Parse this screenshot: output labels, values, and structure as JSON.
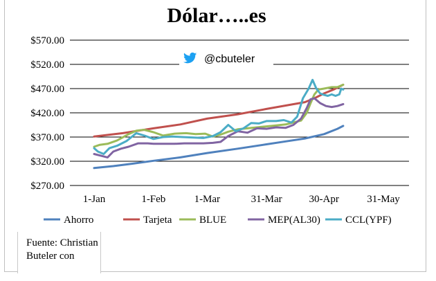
{
  "source_text": "Fuente: Christian Buteler con",
  "watermark": {
    "handle": "@cbuteler",
    "icon": "twitter-bird-icon",
    "icon_color": "#1da1f2"
  },
  "chart_data": {
    "type": "line",
    "title": "Dólar…..es",
    "xlabel": "",
    "ylabel": "",
    "ylim": [
      270,
      570
    ],
    "y_ticks": [
      270,
      320,
      370,
      420,
      470,
      520,
      570
    ],
    "y_tick_labels": [
      "$270.00",
      "$320.00",
      "$370.00",
      "$420.00",
      "$470.00",
      "$520.00",
      "$570.00"
    ],
    "x_ticks": [
      0,
      31,
      59,
      90,
      120,
      151
    ],
    "x_tick_labels": [
      "1-Jan",
      "1-Feb",
      "1-Mar",
      "31-Mar",
      "30-Apr",
      "31-May"
    ],
    "grid": "horizontal",
    "legend_position": "bottom",
    "series": [
      {
        "name": "Ahorro",
        "color": "#4f81bd",
        "x": [
          0,
          10,
          20,
          31,
          45,
          59,
          75,
          90,
          100,
          110,
          120,
          127,
          130
        ],
        "y": [
          306,
          310,
          315,
          321,
          328,
          337,
          346,
          355,
          361,
          367,
          376,
          387,
          393
        ]
      },
      {
        "name": "Tarjeta",
        "color": "#c0504d",
        "x": [
          0,
          15,
          31,
          45,
          59,
          75,
          90,
          100,
          110,
          115,
          120,
          125,
          130
        ],
        "y": [
          371,
          378,
          388,
          396,
          408,
          417,
          428,
          435,
          442,
          450,
          460,
          468,
          478
        ]
      },
      {
        "name": "BLUE",
        "color": "#9bbb59",
        "x": [
          0,
          3,
          7,
          12,
          18,
          22,
          26,
          31,
          36,
          42,
          48,
          53,
          58,
          62,
          66,
          70,
          75,
          80,
          85,
          90,
          95,
          100,
          104,
          108,
          111,
          113,
          115,
          117,
          120,
          124,
          127,
          130
        ],
        "y": [
          350,
          354,
          356,
          363,
          376,
          383,
          385,
          380,
          373,
          377,
          378,
          376,
          377,
          371,
          375,
          381,
          386,
          388,
          390,
          392,
          394,
          396,
          400,
          404,
          420,
          440,
          458,
          468,
          470,
          473,
          473,
          478
        ]
      },
      {
        "name": "MEP(AL30)",
        "color": "#8064a2",
        "x": [
          0,
          4,
          7,
          10,
          14,
          18,
          23,
          28,
          31,
          37,
          42,
          47,
          52,
          57,
          62,
          66,
          70,
          75,
          80,
          85,
          90,
          95,
          100,
          104,
          108,
          111,
          113,
          115,
          118,
          121,
          124,
          127,
          130
        ],
        "y": [
          335,
          331,
          328,
          340,
          346,
          350,
          357,
          357,
          356,
          356,
          356,
          357,
          357,
          357,
          358,
          360,
          372,
          382,
          379,
          388,
          387,
          390,
          389,
          395,
          408,
          430,
          448,
          450,
          440,
          434,
          432,
          434,
          438
        ]
      },
      {
        "name": "CCL(YPF)",
        "color": "#4bacc6",
        "x": [
          0,
          2,
          5,
          8,
          12,
          17,
          22,
          27,
          31,
          36,
          41,
          46,
          52,
          57,
          62,
          66,
          70,
          74,
          78,
          82,
          86,
          90,
          95,
          99,
          103,
          106,
          109,
          112,
          114,
          116,
          118,
          120,
          122,
          124,
          126,
          128,
          129,
          130
        ],
        "y": [
          347,
          340,
          335,
          347,
          352,
          362,
          378,
          372,
          366,
          370,
          371,
          370,
          369,
          368,
          372,
          380,
          395,
          382,
          388,
          399,
          398,
          403,
          403,
          405,
          400,
          412,
          450,
          470,
          488,
          470,
          460,
          457,
          455,
          458,
          455,
          458,
          470,
          468
        ]
      }
    ]
  }
}
